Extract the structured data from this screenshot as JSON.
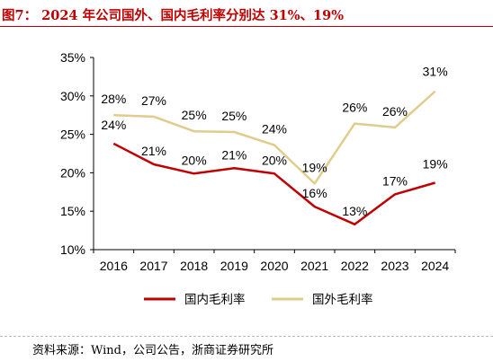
{
  "header": {
    "title": "图7： 2024 年公司国外、国内毛利率分别达 31%、19%"
  },
  "footer": {
    "source": "资料来源：Wind，公司公告，浙商证券研究所"
  },
  "chart_data": {
    "type": "line",
    "title": "",
    "xlabel": "",
    "ylabel": "",
    "categories": [
      "2016",
      "2017",
      "2018",
      "2019",
      "2020",
      "2021",
      "2022",
      "2023",
      "2024"
    ],
    "yticks": [
      "10%",
      "15%",
      "20%",
      "25%",
      "30%",
      "35%"
    ],
    "ylim": [
      10,
      35
    ],
    "grid": false,
    "legend_position": "bottom",
    "series": [
      {
        "name": "国内毛利率",
        "color": "#c00000",
        "values": [
          23.8,
          21.1,
          19.9,
          20.6,
          19.9,
          15.6,
          13.3,
          17.2,
          18.7
        ],
        "labels": [
          "24%",
          "21%",
          "20%",
          "21%",
          "20%",
          "16%",
          "13%",
          "17%",
          "19%"
        ]
      },
      {
        "name": "国外毛利率",
        "color": "#e0cc8c",
        "values": [
          27.5,
          27.3,
          25.4,
          25.3,
          23.6,
          18.6,
          26.4,
          25.9,
          30.6
        ],
        "labels": [
          "28%",
          "27%",
          "25%",
          "25%",
          "24%",
          "19%",
          "26%",
          "26%",
          "31%"
        ]
      }
    ]
  }
}
